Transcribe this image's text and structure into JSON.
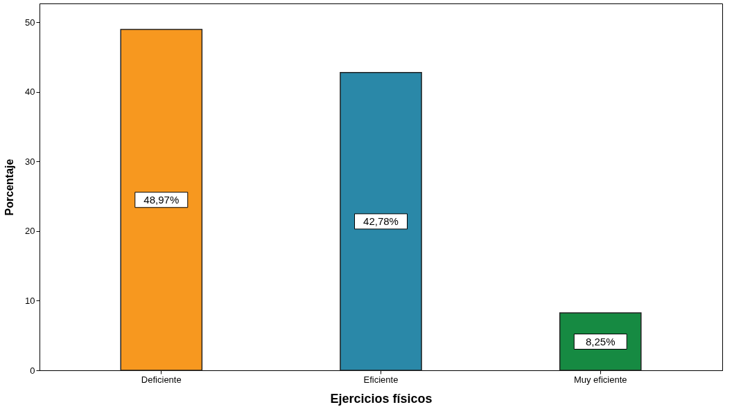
{
  "chart_data": {
    "type": "bar",
    "xlabel": "Ejercicios físicos",
    "ylabel": "Porcentaje",
    "categories": [
      "Deficiente",
      "Eficiente",
      "Muy eficiente"
    ],
    "values": [
      48.97,
      42.78,
      8.25
    ],
    "colors": [
      "#f7981f",
      "#2a88a8",
      "#168a42"
    ],
    "value_labels": [
      "48,97%",
      "42,78%",
      "8,25%"
    ],
    "ylim": [
      0,
      52.7
    ],
    "yticks": [
      0,
      10,
      20,
      30,
      40,
      50
    ],
    "grid": false,
    "legend": false
  }
}
